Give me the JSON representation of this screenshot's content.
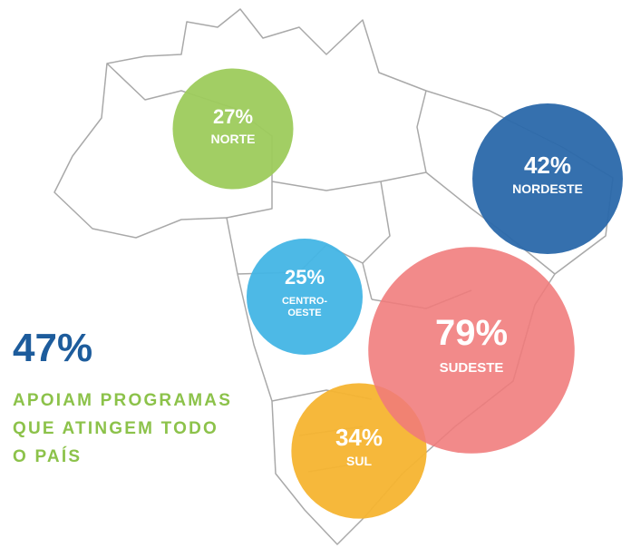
{
  "regions": [
    {
      "name_lines": [
        "NORTE"
      ],
      "value": 27,
      "value_label": "27%",
      "color": "#9dcb5c"
    },
    {
      "name_lines": [
        "NORDESTE"
      ],
      "value": 42,
      "value_label": "42%",
      "color": "#2a68aa"
    },
    {
      "name_lines": [
        "CENTRO-",
        "OESTE"
      ],
      "value": 25,
      "value_label": "25%",
      "color": "#43b5e5"
    },
    {
      "name_lines": [
        "SUL"
      ],
      "value": 34,
      "value_label": "34%",
      "color": "#f6b430"
    },
    {
      "name_lines": [
        "SUDESTE"
      ],
      "value": 79,
      "value_label": "79%",
      "color": "#f07a7a"
    }
  ],
  "highlight": {
    "value_label": "47%",
    "text_lines": [
      "APOIAM PROGRAMAS",
      "QUE ATINGEM TODO",
      "O PAÍS"
    ]
  }
}
